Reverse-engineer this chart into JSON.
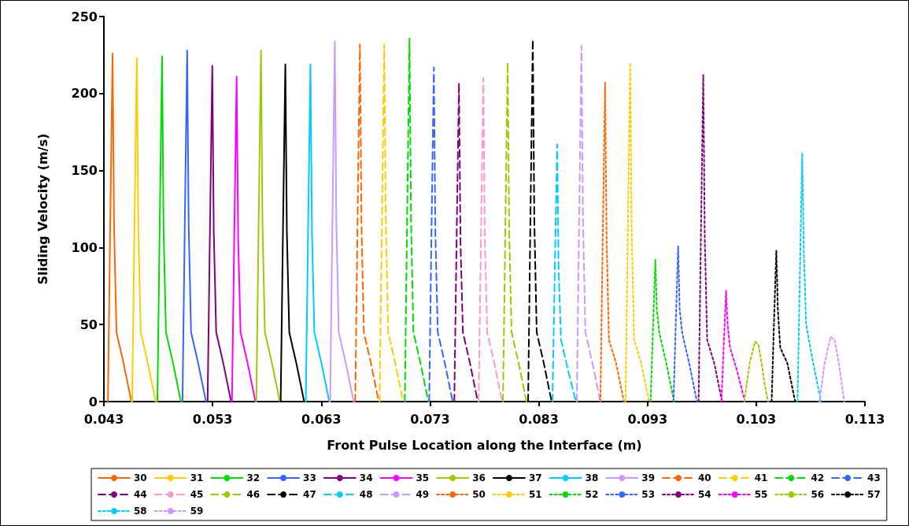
{
  "chart_data": {
    "type": "line",
    "xlabel": "Front Pulse Location along the Interface (m)",
    "ylabel": "Sliding Velocity (m/s)",
    "xlim": [
      0.043,
      0.113
    ],
    "xticks": [
      0.043,
      0.053,
      0.063,
      0.073,
      0.083,
      0.093,
      0.103,
      0.113
    ],
    "ylim": [
      0,
      250
    ],
    "yticks": [
      0,
      50,
      100,
      150,
      200,
      250
    ],
    "grid": false,
    "legend": "bottom",
    "marker": "none",
    "series": [
      {
        "name": "30",
        "color": "#ff6600",
        "line_style": "solid",
        "x": [
          0.04337,
          0.04358,
          0.0438,
          0.04394,
          0.04416,
          0.04481,
          0.04553
        ],
        "values": [
          0,
          113,
          226,
          113,
          45,
          25,
          0
        ]
      },
      {
        "name": "31",
        "color": "#ffcc00",
        "line_style": "solid",
        "x": [
          0.0456,
          0.04581,
          0.04603,
          0.04617,
          0.04639,
          0.04704,
          0.04776
        ],
        "values": [
          0,
          112,
          223,
          112,
          45,
          25,
          0
        ]
      },
      {
        "name": "32",
        "color": "#00dd00",
        "line_style": "solid",
        "x": [
          0.04792,
          0.04813,
          0.04835,
          0.04849,
          0.04871,
          0.04936,
          0.05008
        ],
        "values": [
          0,
          112,
          224,
          112,
          45,
          25,
          0
        ]
      },
      {
        "name": "33",
        "color": "#3366ff",
        "line_style": "solid",
        "x": [
          0.05023,
          0.05044,
          0.05066,
          0.0508,
          0.05102,
          0.05167,
          0.05239
        ],
        "values": [
          0,
          114,
          228,
          114,
          45,
          25,
          0
        ]
      },
      {
        "name": "34",
        "color": "#800080",
        "line_style": "solid",
        "x": [
          0.05254,
          0.05275,
          0.05297,
          0.05311,
          0.05333,
          0.05398,
          0.0547
        ],
        "values": [
          0,
          109,
          218,
          109,
          45,
          25,
          0
        ]
      },
      {
        "name": "35",
        "color": "#ff00ff",
        "line_style": "solid",
        "x": [
          0.05478,
          0.05499,
          0.05521,
          0.05535,
          0.05557,
          0.05622,
          0.05694
        ],
        "values": [
          0,
          106,
          211,
          106,
          45,
          25,
          0
        ]
      },
      {
        "name": "36",
        "color": "#99cc00",
        "line_style": "solid",
        "x": [
          0.05702,
          0.05723,
          0.05745,
          0.05759,
          0.05781,
          0.05846,
          0.05918
        ],
        "values": [
          0,
          114,
          228,
          114,
          45,
          25,
          0
        ]
      },
      {
        "name": "37",
        "color": "#000000",
        "line_style": "solid",
        "x": [
          0.05926,
          0.05947,
          0.05969,
          0.05983,
          0.06005,
          0.0607,
          0.06142
        ],
        "values": [
          0,
          110,
          219,
          110,
          45,
          25,
          0
        ]
      },
      {
        "name": "38",
        "color": "#00ccff",
        "line_style": "solid",
        "x": [
          0.06157,
          0.06178,
          0.062,
          0.06214,
          0.06236,
          0.06301,
          0.06373
        ],
        "values": [
          0,
          110,
          219,
          110,
          45,
          25,
          0
        ]
      },
      {
        "name": "39",
        "color": "#cc99ff",
        "line_style": "solid",
        "x": [
          0.06381,
          0.06402,
          0.06424,
          0.06438,
          0.0646,
          0.06525,
          0.06597
        ],
        "values": [
          0,
          117,
          234,
          117,
          45,
          25,
          0
        ]
      },
      {
        "name": "40",
        "color": "#ff6600",
        "line_style": "dashed",
        "x": [
          0.06612,
          0.06633,
          0.06655,
          0.06669,
          0.06691,
          0.06756,
          0.06828
        ],
        "values": [
          0,
          116,
          232,
          116,
          45,
          25,
          0
        ]
      },
      {
        "name": "41",
        "color": "#ffcc00",
        "line_style": "dashed",
        "x": [
          0.06836,
          0.06857,
          0.06879,
          0.06893,
          0.06915,
          0.0698,
          0.07052
        ],
        "values": [
          0,
          116,
          232,
          116,
          45,
          25,
          0
        ]
      },
      {
        "name": "42",
        "color": "#00dd00",
        "line_style": "dashed",
        "x": [
          0.07068,
          0.07089,
          0.07111,
          0.07125,
          0.07147,
          0.07212,
          0.07284
        ],
        "values": [
          0,
          118,
          236,
          118,
          45,
          25,
          0
        ]
      },
      {
        "name": "43",
        "color": "#3366ff",
        "line_style": "dashed",
        "x": [
          0.07292,
          0.07313,
          0.07335,
          0.07349,
          0.07371,
          0.07436,
          0.07508
        ],
        "values": [
          0,
          109,
          217,
          109,
          45,
          25,
          0
        ]
      },
      {
        "name": "44",
        "color": "#800080",
        "line_style": "dashed",
        "x": [
          0.07523,
          0.07544,
          0.07566,
          0.0758,
          0.07602,
          0.07667,
          0.07739
        ],
        "values": [
          0,
          104,
          207,
          104,
          45,
          25,
          0
        ]
      },
      {
        "name": "45",
        "color": "#ff99cc",
        "line_style": "dashed",
        "x": [
          0.07747,
          0.07768,
          0.0779,
          0.07804,
          0.07826,
          0.07891,
          0.07963
        ],
        "values": [
          0,
          105,
          210,
          105,
          45,
          25,
          0
        ]
      },
      {
        "name": "46",
        "color": "#99cc00",
        "line_style": "dashed",
        "x": [
          0.07971,
          0.07992,
          0.08014,
          0.08028,
          0.0805,
          0.08115,
          0.08187
        ],
        "values": [
          0,
          110,
          220,
          110,
          45,
          25,
          0
        ]
      },
      {
        "name": "47",
        "color": "#000000",
        "line_style": "dashed",
        "x": [
          0.08202,
          0.08223,
          0.08245,
          0.08259,
          0.08281,
          0.08346,
          0.08418
        ],
        "values": [
          0,
          118,
          235,
          118,
          45,
          25,
          0
        ]
      },
      {
        "name": "48",
        "color": "#00ccff",
        "line_style": "dashed",
        "x": [
          0.08426,
          0.08447,
          0.08469,
          0.08483,
          0.08505,
          0.0857,
          0.08642
        ],
        "values": [
          0,
          84,
          167,
          84,
          40,
          20,
          0
        ]
      },
      {
        "name": "49",
        "color": "#cc99ff",
        "line_style": "dashed",
        "x": [
          0.0865,
          0.08671,
          0.08693,
          0.08707,
          0.08729,
          0.08794,
          0.08866
        ],
        "values": [
          0,
          116,
          231,
          116,
          45,
          25,
          0
        ]
      },
      {
        "name": "50",
        "color": "#ff6600",
        "line_style": "dotted",
        "x": [
          0.08867,
          0.08888,
          0.0891,
          0.08924,
          0.08946,
          0.09011,
          0.09083
        ],
        "values": [
          0,
          104,
          207,
          104,
          40,
          25,
          0
        ]
      },
      {
        "name": "51",
        "color": "#ffcc00",
        "line_style": "dotted",
        "x": [
          0.09098,
          0.09119,
          0.09141,
          0.09155,
          0.09177,
          0.09242,
          0.09314
        ],
        "values": [
          0,
          110,
          220,
          110,
          40,
          25,
          0
        ]
      },
      {
        "name": "52",
        "color": "#00dd00",
        "line_style": "dotted",
        "x": [
          0.09329,
          0.0935,
          0.09372,
          0.09386,
          0.09408,
          0.09473,
          0.09545
        ],
        "values": [
          0,
          46,
          92,
          60,
          45,
          25,
          0
        ]
      },
      {
        "name": "53",
        "color": "#3366ff",
        "line_style": "dotted",
        "x": [
          0.09539,
          0.0956,
          0.09582,
          0.09596,
          0.09618,
          0.09683,
          0.09755
        ],
        "values": [
          0,
          50,
          101,
          60,
          45,
          25,
          0
        ]
      },
      {
        "name": "54",
        "color": "#800080",
        "line_style": "dotted",
        "x": [
          0.0977,
          0.09791,
          0.09813,
          0.09827,
          0.09849,
          0.09914,
          0.09986
        ],
        "values": [
          0,
          106,
          212,
          106,
          40,
          25,
          0
        ]
      },
      {
        "name": "55",
        "color": "#ff00ff",
        "line_style": "dotted",
        "x": [
          0.0998,
          0.10001,
          0.10023,
          0.10037,
          0.10059,
          0.10124,
          0.10196
        ],
        "values": [
          0,
          36,
          72,
          50,
          35,
          20,
          0
        ]
      },
      {
        "name": "56",
        "color": "#99cc00",
        "line_style": "dotted",
        "x": [
          0.1019,
          0.1024,
          0.1029,
          0.1032,
          0.1035,
          0.1038,
          0.1041
        ],
        "values": [
          0,
          25,
          39,
          37,
          25,
          10,
          0
        ]
      },
      {
        "name": "57",
        "color": "#000000",
        "line_style": "dotted",
        "x": [
          0.10442,
          0.10463,
          0.10485,
          0.10499,
          0.10521,
          0.10586,
          0.10658
        ],
        "values": [
          0,
          50,
          98,
          60,
          35,
          25,
          0
        ]
      },
      {
        "name": "58",
        "color": "#00ccff",
        "line_style": "dotted",
        "x": [
          0.1068,
          0.10701,
          0.10723,
          0.10737,
          0.10759,
          0.10824,
          0.10896
        ],
        "values": [
          0,
          80,
          161,
          100,
          50,
          25,
          0
        ]
      },
      {
        "name": "59",
        "color": "#cc99ff",
        "line_style": "dotted",
        "x": [
          0.1088,
          0.1093,
          0.10984,
          0.1102,
          0.1106,
          0.1109,
          0.1111
        ],
        "values": [
          0,
          25,
          42,
          40,
          25,
          10,
          0
        ]
      }
    ]
  }
}
